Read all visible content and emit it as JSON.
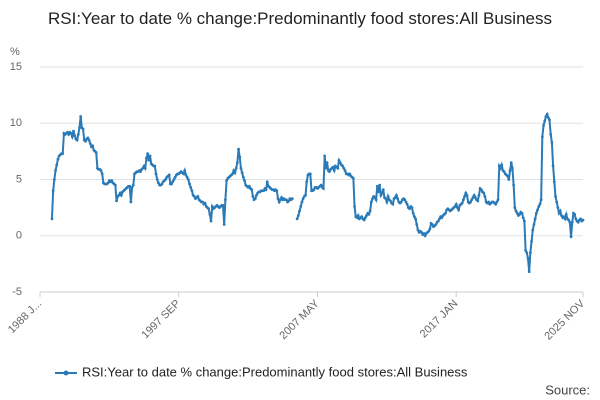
{
  "chart_data": {
    "type": "line",
    "title": "RSI:Year to date % change:Predominantly food stores:All Business",
    "y_label": "%",
    "source": "Source:",
    "categories": [
      "1988 J...",
      null,
      null,
      null,
      null,
      null,
      null,
      null,
      null,
      null,
      null,
      null,
      null,
      null,
      null,
      null,
      null,
      null,
      null,
      null,
      null,
      null,
      null,
      null,
      null,
      null,
      null,
      null,
      null,
      null,
      null,
      null,
      null,
      null,
      null,
      null,
      null,
      null,
      null,
      null,
      null,
      null,
      null,
      null,
      null,
      null,
      null,
      null,
      null,
      null,
      null,
      null,
      null,
      null,
      null,
      null,
      null,
      null,
      null,
      null,
      null,
      null,
      null,
      null,
      null,
      null,
      null,
      null,
      null,
      null,
      null,
      null,
      null,
      null,
      null,
      null,
      null,
      null,
      null,
      null,
      null,
      null,
      null,
      null,
      null,
      null,
      null,
      null,
      null,
      null,
      null,
      null,
      null,
      null,
      null,
      null,
      null,
      null,
      null,
      null,
      null,
      null,
      null,
      null,
      null,
      null,
      null,
      null,
      null,
      null,
      null,
      null,
      null,
      null,
      null,
      null,
      "1997 SEP",
      null,
      null,
      null,
      null,
      null,
      null,
      null,
      null,
      null,
      null,
      null,
      null,
      null,
      null,
      null,
      null,
      null,
      null,
      null,
      null,
      null,
      null,
      null,
      null,
      null,
      null,
      null,
      null,
      null,
      null,
      null,
      null,
      null,
      null,
      null,
      null,
      null,
      null,
      null,
      null,
      null,
      null,
      null,
      null,
      null,
      null,
      null,
      null,
      null,
      null,
      null,
      null,
      null,
      null,
      null,
      null,
      null,
      null,
      null,
      null,
      null,
      null,
      null,
      null,
      null,
      null,
      null,
      null,
      null,
      null,
      null,
      null,
      null,
      null,
      null,
      null,
      null,
      null,
      null,
      null,
      null,
      null,
      null,
      null,
      null,
      null,
      null,
      null,
      null,
      null,
      null,
      null,
      null,
      null,
      null,
      null,
      null,
      null,
      null,
      null,
      null,
      null,
      null,
      null,
      null,
      null,
      null,
      null,
      null,
      null,
      null,
      null,
      null,
      null,
      null,
      "2007 MAY",
      null,
      null,
      null,
      null,
      null,
      null,
      null,
      null,
      null,
      null,
      null,
      null,
      null,
      null,
      null,
      null,
      null,
      null,
      null,
      null,
      null,
      null,
      null,
      null,
      null,
      null,
      null,
      null,
      null,
      null,
      null,
      null,
      null,
      null,
      null,
      null,
      null,
      null,
      null,
      null,
      null,
      null,
      null,
      null,
      null,
      null,
      null,
      null,
      null,
      null,
      null,
      null,
      null,
      null,
      null,
      null,
      null,
      null,
      null,
      null,
      null,
      null,
      null,
      null,
      null,
      null,
      null,
      null,
      null,
      null,
      null,
      null,
      null,
      null,
      null,
      null,
      null,
      null,
      null,
      null,
      null,
      null,
      null,
      null,
      null,
      null,
      null,
      null,
      null,
      null,
      null,
      null,
      null,
      null,
      null,
      null,
      null,
      null,
      null,
      null,
      null,
      null,
      null,
      null,
      null,
      null,
      null,
      null,
      null,
      null,
      null,
      null,
      null,
      null,
      null,
      "2017 JAN",
      null,
      null,
      null,
      null,
      null,
      null,
      null,
      null,
      null,
      null,
      null,
      null,
      null,
      null,
      null,
      null,
      null,
      null,
      null,
      null,
      null,
      null,
      null,
      null,
      null,
      null,
      null,
      null,
      null,
      null,
      null,
      null,
      null,
      null,
      null,
      null,
      null,
      null,
      null,
      null,
      null,
      null,
      null,
      null,
      null,
      null,
      null,
      null,
      null,
      null,
      null,
      null,
      null,
      null,
      null,
      null,
      null,
      null,
      null,
      null,
      null,
      null,
      null,
      null,
      null,
      null,
      null,
      null,
      null,
      null,
      null,
      null,
      null,
      null,
      null,
      null,
      null,
      null,
      null,
      null,
      null,
      null,
      null,
      null,
      null,
      null,
      null,
      null,
      null,
      null,
      null,
      null,
      null,
      null,
      null,
      null,
      null,
      null,
      null,
      null,
      null,
      null,
      null,
      null,
      null,
      "2025 NOV"
    ],
    "series": [
      {
        "name": "RSI:Year to date % change:Predominantly food stores:All Business",
        "color": "#2a7ab8",
        "values": [
          null,
          null,
          null,
          null,
          null,
          null,
          null,
          null,
          null,
          null,
          1.5,
          4.0,
          5.0,
          5.8,
          6.3,
          6.8,
          7.1,
          7.2,
          7.3,
          7.3,
          9.1,
          9.0,
          9.1,
          9.2,
          9.0,
          9.2,
          9.1,
          8.8,
          9.3,
          8.9,
          8.6,
          8.5,
          9.0,
          9.6,
          10.6,
          9.6,
          9.5,
          8.5,
          8.4,
          8.6,
          8.7,
          8.5,
          8.2,
          7.9,
          8.0,
          7.6,
          7.5,
          7.4,
          6.0,
          5.9,
          5.9,
          5.8,
          5.5,
          4.7,
          4.6,
          4.6,
          4.6,
          4.7,
          4.9,
          4.8,
          4.9,
          4.7,
          4.6,
          4.5,
          3.1,
          3.5,
          3.6,
          3.8,
          3.6,
          3.9,
          4.0,
          4.1,
          4.2,
          4.3,
          4.4,
          4.4,
          3.0,
          4.3,
          4.5,
          5.5,
          5.6,
          5.7,
          5.7,
          5.8,
          5.7,
          5.9,
          6.0,
          6.2,
          6.0,
          6.9,
          7.3,
          6.7,
          7.1,
          6.4,
          6.3,
          6.2,
          6.2,
          5.5,
          5.0,
          4.7,
          4.5,
          4.5,
          4.6,
          4.8,
          4.9,
          5.0,
          5.2,
          5.3,
          5.4,
          4.6,
          4.6,
          4.8,
          5.0,
          5.2,
          5.4,
          5.5,
          5.5,
          5.6,
          5.7,
          5.6,
          5.5,
          5.8,
          5.4,
          5.2,
          5.0,
          4.6,
          4.3,
          4.0,
          3.6,
          3.5,
          3.3,
          3.4,
          3.5,
          3.2,
          3.1,
          3.0,
          3.0,
          2.8,
          2.9,
          2.6,
          2.5,
          2.4,
          1.9,
          1.3,
          2.6,
          2.4,
          2.5,
          2.6,
          2.7,
          2.6,
          2.5,
          2.6,
          2.7,
          2.7,
          1.0,
          3.2,
          4.9,
          5.1,
          5.2,
          5.3,
          5.4,
          5.5,
          5.8,
          5.6,
          6.0,
          6.5,
          7.7,
          7.0,
          6.0,
          5.6,
          5.2,
          4.9,
          4.5,
          4.4,
          4.3,
          4.4,
          4.2,
          4.1,
          3.5,
          3.2,
          3.3,
          3.6,
          3.8,
          3.9,
          3.9,
          4.0,
          4.0,
          4.0,
          4.2,
          4.1,
          4.8,
          4.4,
          4.3,
          4.2,
          4.1,
          4.1,
          4.0,
          4.1,
          4.0,
          3.3,
          3.0,
          3.2,
          3.4,
          3.2,
          3.3,
          3.2,
          3.2,
          3.0,
          3.1,
          3.3,
          3.2,
          3.3,
          null,
          null,
          null,
          1.5,
          1.8,
          2.2,
          2.6,
          3.0,
          3.3,
          3.5,
          3.6,
          4.8,
          5.4,
          5.5,
          5.5,
          4.0,
          4.0,
          4.1,
          4.3,
          4.3,
          4.2,
          4.3,
          4.4,
          4.5,
          4.3,
          4.2,
          7.1,
          6.0,
          6.5,
          5.8,
          5.7,
          5.9,
          6.0,
          6.1,
          5.8,
          6.2,
          6.1,
          6.0,
          6.7,
          6.5,
          6.3,
          6.2,
          6.0,
          5.8,
          5.5,
          5.5,
          5.4,
          5.5,
          5.3,
          5.2,
          5.1,
          2.6,
          1.7,
          1.6,
          1.8,
          1.5,
          1.6,
          1.7,
          1.5,
          1.4,
          1.6,
          1.8,
          2.0,
          1.9,
          2.2,
          3.0,
          3.3,
          3.5,
          3.4,
          3.2,
          4.4,
          3.9,
          4.5,
          3.6,
          3.8,
          4.1,
          3.4,
          3.3,
          3.0,
          3.5,
          3.2,
          3.1,
          2.9,
          2.8,
          3.3,
          3.4,
          3.6,
          3.3,
          3.0,
          2.9,
          3.0,
          3.2,
          3.3,
          3.2,
          3.0,
          2.8,
          2.5,
          2.4,
          2.6,
          2.5,
          2.0,
          1.7,
          1.5,
          1.0,
          0.5,
          0.3,
          0.4,
          0.3,
          0.1,
          0.2,
          0.0,
          0.2,
          0.3,
          0.4,
          0.6,
          1.1,
          1.0,
          0.8,
          0.9,
          1.0,
          1.2,
          1.3,
          1.5,
          1.7,
          1.6,
          1.8,
          1.9,
          2.0,
          2.3,
          2.4,
          2.3,
          2.2,
          2.3,
          2.4,
          2.5,
          2.6,
          2.8,
          2.5,
          2.3,
          2.7,
          2.8,
          2.9,
          3.2,
          3.5,
          3.8,
          3.6,
          3.0,
          2.9,
          3.0,
          3.2,
          3.4,
          3.6,
          3.4,
          3.2,
          3.1,
          3.6,
          4.2,
          4.1,
          3.9,
          3.8,
          3.5,
          3.0,
          2.9,
          3.0,
          2.8,
          2.9,
          3.0,
          3.0,
          2.9,
          2.8,
          3.0,
          3.2,
          6.2,
          6.0,
          6.3,
          5.8,
          5.7,
          5.5,
          5.4,
          5.3,
          5.0,
          5.8,
          6.5,
          6.0,
          4.5,
          2.5,
          2.2,
          2.0,
          1.8,
          1.9,
          2.1,
          2.0,
          1.6,
          1.3,
          -1.3,
          -1.5,
          -2.0,
          -3.2,
          -1.5,
          -0.5,
          0.5,
          1.0,
          1.5,
          2.0,
          2.3,
          2.6,
          2.8,
          3.2,
          8.8,
          9.8,
          10.2,
          10.6,
          10.8,
          10.5,
          10.3,
          9.0,
          8.3,
          6.2,
          4.8,
          3.5,
          3.0,
          2.5,
          2.0,
          2.2,
          1.8,
          1.6,
          1.7,
          1.5,
          1.9,
          1.5,
          1.4,
          1.2,
          -0.1,
          1.2,
          2.0,
          1.9,
          1.5,
          1.3,
          1.2,
          1.4,
          1.5,
          1.3,
          1.4
        ]
      }
    ],
    "ylim": [
      -5,
      15
    ],
    "yticks": [
      -5,
      0,
      5,
      10,
      15
    ],
    "grid": true,
    "legend": "bottom"
  }
}
